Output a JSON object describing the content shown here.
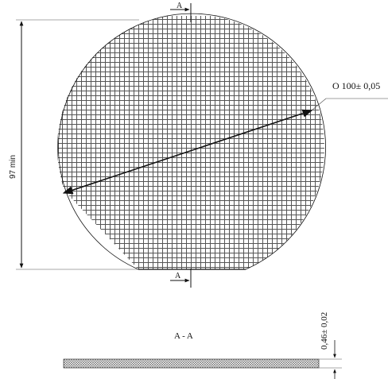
{
  "section_mark_top": "A",
  "section_mark_bottom": "A",
  "diameter_label": "O 100± 0,05",
  "height_label": "97 min",
  "section_title": "A - A",
  "thickness_label": "0,46± 0,02",
  "colors": {
    "line": "#111111",
    "hatch": "#555555",
    "fill": "#ffffff"
  }
}
